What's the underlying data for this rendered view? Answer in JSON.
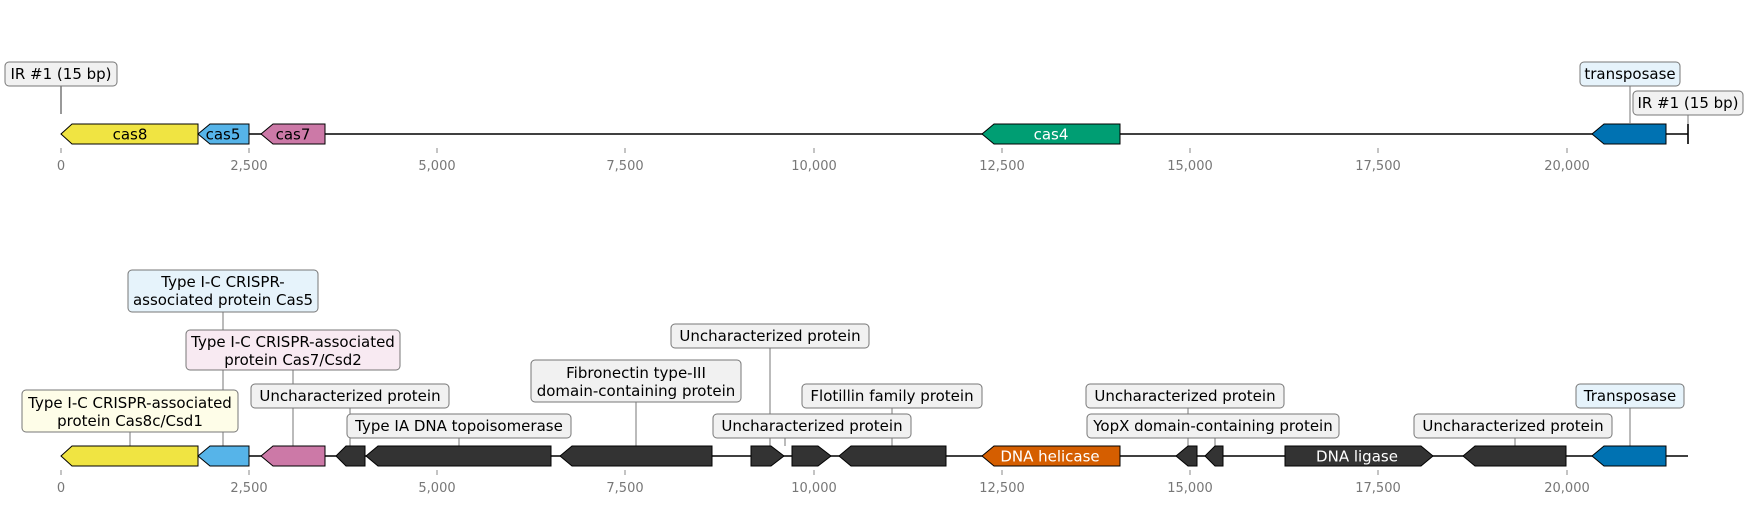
{
  "colors": {
    "cas8": "#f0e442",
    "cas5": "#56b4e9",
    "cas7": "#cc79a7",
    "cas4": "#009e73",
    "transposase": "#0072b2",
    "helicase": "#d55e00",
    "dark": "#333333",
    "box_yellow": "#fefde8",
    "box_blue": "#e6f3fb",
    "box_pink": "#f8eaf2",
    "box_gray": "#f1f1f1"
  },
  "axis": {
    "tick_labels": [
      "0",
      "2,500",
      "5,000",
      "7,500",
      "10,000",
      "12,500",
      "15,000",
      "17,500",
      "20,000"
    ]
  },
  "top_track": {
    "ir_left": "IR #1 (15 bp)",
    "ir_right": "IR #1 (15 bp)",
    "transposase": "transposase",
    "genes": {
      "cas8": "cas8",
      "cas5": "cas5",
      "cas7": "cas7",
      "cas4": "cas4"
    }
  },
  "bottom_track": {
    "labels": {
      "cas5": [
        "Type I-C CRISPR-",
        "associated protein Cas5"
      ],
      "cas7": [
        "Type I-C CRISPR-associated",
        "protein Cas7/Csd2"
      ],
      "cas8": [
        "Type I-C CRISPR-associated",
        "protein Cas8c/Csd1"
      ],
      "unchar1": "Uncharacterized protein",
      "topo": "Type IA DNA topoisomerase",
      "fibro": [
        "Fibronectin type-III",
        "domain-containing protein"
      ],
      "unchar2": "Uncharacterized protein",
      "unchar3": "Uncharacterized protein",
      "flotillin": "Flotillin family protein",
      "unchar4": "Uncharacterized protein",
      "yopx": "YopX domain-containing protein",
      "unchar5": "Uncharacterized protein",
      "transposase": "Transposase"
    },
    "genes": {
      "helicase": "DNA helicase",
      "ligase": "DNA ligase"
    }
  }
}
